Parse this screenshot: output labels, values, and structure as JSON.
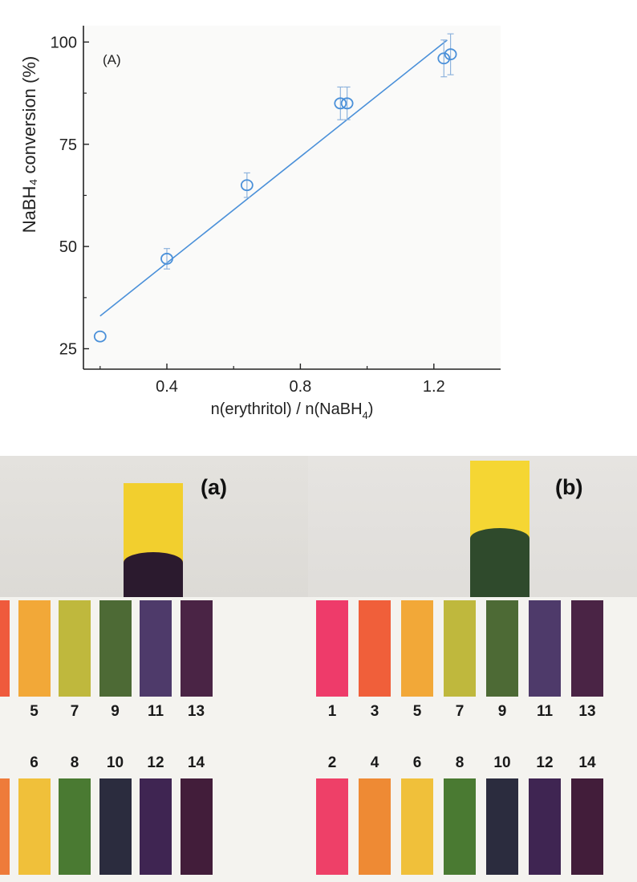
{
  "chart_data": {
    "type": "scatter",
    "panel_label": "(A)",
    "xlabel": "n(erythritol) / n(NaBH",
    "xlabel_sub": "4",
    "xlabel_end": ")",
    "ylabel": "NaBH₄ conversion (%)",
    "xlim": [
      0.15,
      1.4
    ],
    "ylim": [
      20,
      104
    ],
    "xticks": [
      0.4,
      0.8,
      1.2
    ],
    "xtick_labels": [
      "0.4",
      "0.8",
      "1.2"
    ],
    "yticks": [
      25,
      50,
      75,
      100
    ],
    "ytick_labels": [
      "25",
      "50",
      "75",
      "100"
    ],
    "points": [
      {
        "x": 0.2,
        "y": 28,
        "err": 0
      },
      {
        "x": 0.4,
        "y": 47,
        "err": 2.5
      },
      {
        "x": 0.64,
        "y": 65,
        "err": 3
      },
      {
        "x": 0.92,
        "y": 85,
        "err": 4
      },
      {
        "x": 0.94,
        "y": 85,
        "err": 4
      },
      {
        "x": 1.23,
        "y": 96,
        "err": 4.5
      },
      {
        "x": 1.25,
        "y": 97,
        "err": 5
      }
    ],
    "fit_line": {
      "x": [
        0.2,
        1.24
      ],
      "y": [
        33,
        100.5
      ]
    },
    "color": "#4a90d9"
  },
  "photos": {
    "panel_a": {
      "label": "(a)",
      "top_numbers": [
        "5",
        "7",
        "9",
        "11",
        "13"
      ],
      "bottom_numbers": [
        "6",
        "8",
        "10",
        "12",
        "14"
      ],
      "top_colors": [
        "#ef5a3c",
        "#f2a838",
        "#bfb83d",
        "#4d6a35",
        "#4e3a6a",
        "#4a2445"
      ],
      "bottom_colors": [
        "#ee7b3a",
        "#f0c03a",
        "#4a7a32",
        "#2b2c3e",
        "#3f2552",
        "#421d3a"
      ],
      "strip_color": "#f2cf2e",
      "wet_color": "#2b1a2e"
    },
    "panel_b": {
      "label": "(b)",
      "top_numbers": [
        "1",
        "3",
        "5",
        "7",
        "9",
        "11",
        "13"
      ],
      "bottom_numbers": [
        "2",
        "4",
        "6",
        "8",
        "10",
        "12",
        "14"
      ],
      "top_colors": [
        "#ee3b6a",
        "#f05f3a",
        "#f2a838",
        "#bfb83d",
        "#4d6a35",
        "#4e3a6a",
        "#4a2445"
      ],
      "bottom_colors": [
        "#ee4068",
        "#ee8a34",
        "#f0c03a",
        "#4a7a32",
        "#2b2c3e",
        "#3f2552",
        "#421d3a"
      ],
      "strip_color": "#f5d633",
      "wet_color": "#2f4a2c"
    }
  }
}
